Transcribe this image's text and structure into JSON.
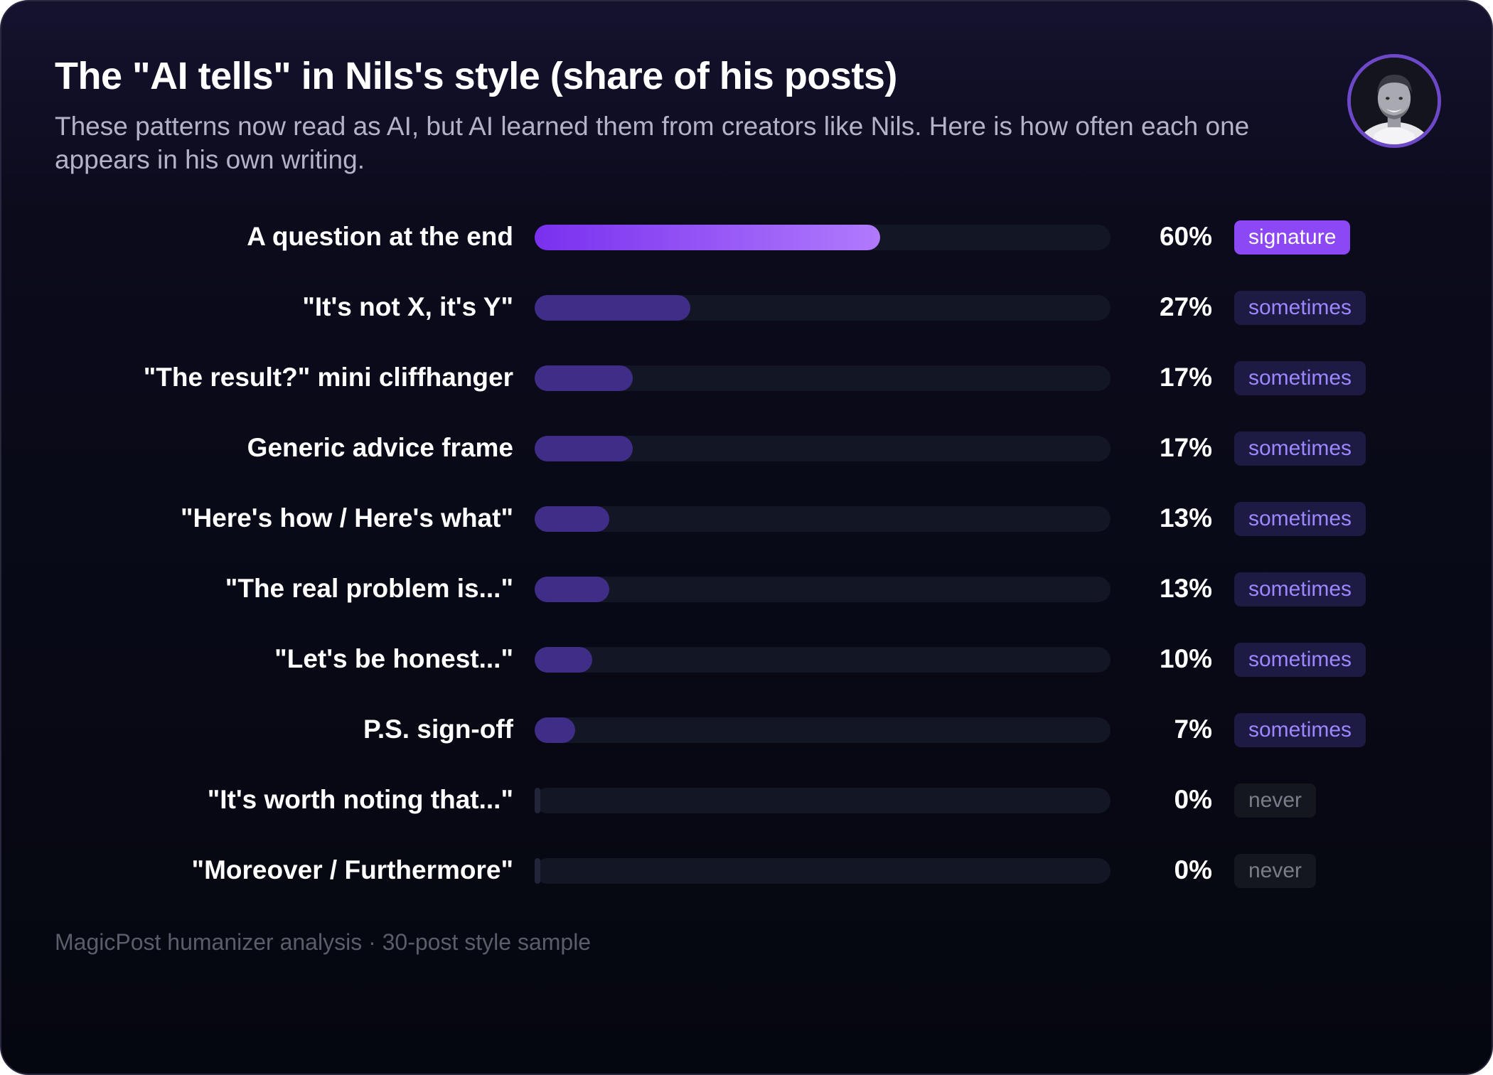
{
  "chart_data": {
    "type": "bar",
    "orientation": "horizontal",
    "title": "The \"AI tells\" in Nils's style (share of his posts)",
    "subtitle": "These patterns now read as AI, but AI learned them from creators like Nils. Here is how often each one appears in his own writing.",
    "xlim": [
      0,
      100
    ],
    "unit": "%",
    "grid": false,
    "categories": [
      "A question at the end",
      "\"It's not X, it's Y\"",
      "\"The result?\" mini cliffhanger",
      "Generic advice frame",
      "\"Here's how / Here's what\"",
      "\"The real problem is...\"",
      "\"Let's be honest...\"",
      "P.S. sign-off",
      "\"It's worth noting that...\"",
      "\"Moreover / Furthermore\""
    ],
    "values": [
      60,
      27,
      17,
      17,
      13,
      13,
      10,
      7,
      0,
      0
    ],
    "value_labels": [
      "60%",
      "27%",
      "17%",
      "17%",
      "13%",
      "13%",
      "10%",
      "7%",
      "0%",
      "0%"
    ],
    "badges": [
      "signature",
      "sometimes",
      "sometimes",
      "sometimes",
      "sometimes",
      "sometimes",
      "sometimes",
      "sometimes",
      "never",
      "never"
    ],
    "colors": {
      "signature_start": "#7a30ef",
      "signature_end": "#b07afc",
      "sometimes_bar": "#3f2d88",
      "never_bar": "#22253a",
      "track": "#131624"
    }
  },
  "footer": "MagicPost humanizer analysis · 30-post style sample",
  "avatar": {
    "icon": "avatar-photo-icon"
  }
}
